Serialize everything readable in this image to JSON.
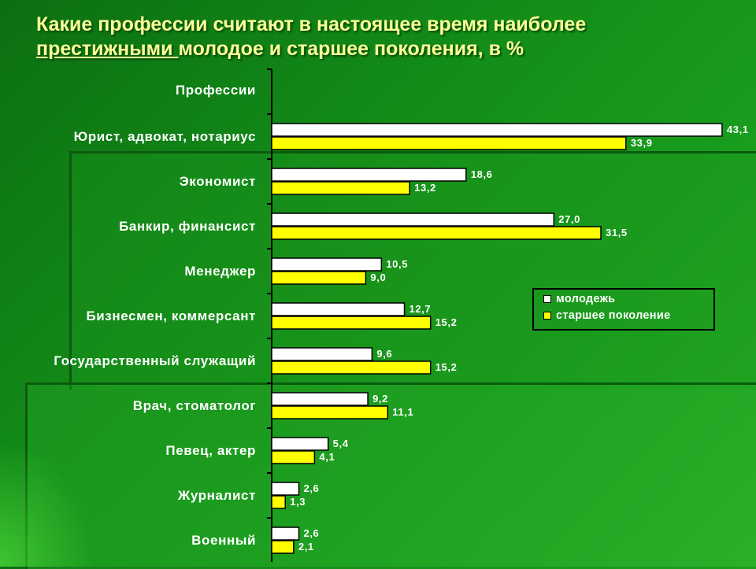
{
  "title": {
    "line1": "Какие профессии считают в настоящее время наиболее",
    "line2_underlined": "престижными ",
    "line2_rest": "молодое и старшее поколения, в %"
  },
  "chart_data": {
    "type": "bar",
    "orientation": "horizontal",
    "category_header": "Профессии",
    "categories": [
      "Юрист, адвокат, нотариус",
      "Экономист",
      "Банкир, финансист",
      "Менеджер",
      "Бизнесмен, коммерсант",
      "Государственный служащий",
      "Врач, стоматолог",
      "Певец, актер",
      "Журналист",
      "Военный"
    ],
    "series": [
      {
        "name": "молодежь",
        "color": "#ffffff",
        "values": [
          43.1,
          18.6,
          27.0,
          10.5,
          12.7,
          9.6,
          9.2,
          5.4,
          2.6,
          2.6
        ],
        "labels": [
          "43,1",
          "18,6",
          "27,0",
          "10,5",
          "12,7",
          "9,6",
          "9,2",
          "5,4",
          "2,6",
          "2,6"
        ]
      },
      {
        "name": "старшее поколение",
        "color": "#ffff00",
        "values": [
          33.9,
          13.2,
          31.5,
          9.0,
          15.2,
          15.2,
          11.1,
          4.1,
          1.3,
          2.1
        ],
        "labels": [
          "33,9",
          "13,2",
          "31,5",
          "9,0",
          "15,2",
          "15,2",
          "11,1",
          "4,1",
          "1,3",
          "2,1"
        ]
      }
    ],
    "legend_position": "right",
    "grid": false
  }
}
